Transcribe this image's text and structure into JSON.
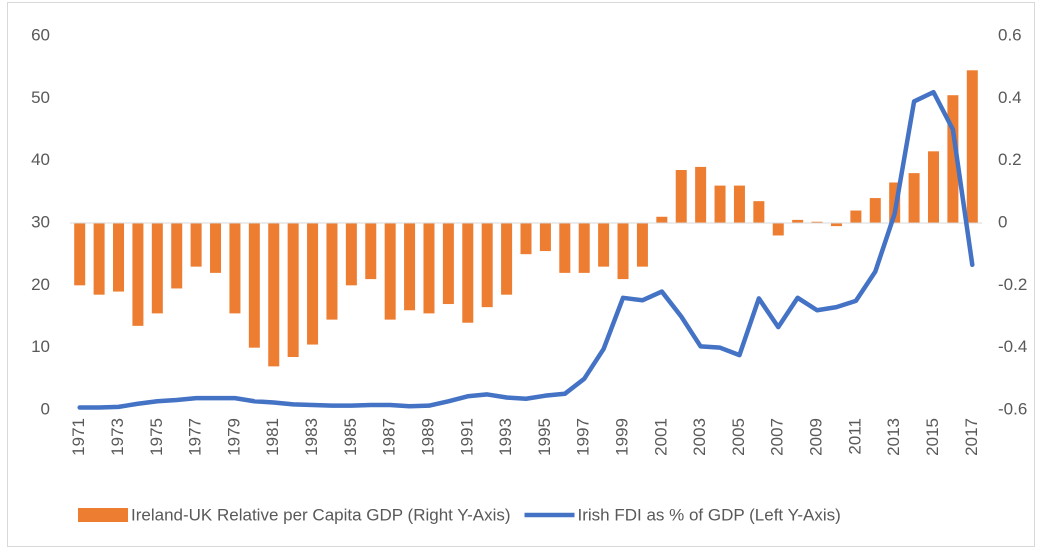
{
  "chart_data": {
    "type": "combo",
    "categories": [
      "1971",
      null,
      "1973",
      null,
      "1975",
      null,
      "1977",
      null,
      "1979",
      null,
      "1981",
      null,
      "1983",
      null,
      "1985",
      null,
      "1987",
      null,
      "1989",
      null,
      "1991",
      null,
      "1993",
      null,
      "1995",
      null,
      "1997",
      null,
      "1999",
      null,
      "2001",
      null,
      "2003",
      null,
      "2005",
      null,
      "2007",
      null,
      "2009",
      null,
      "2011",
      null,
      "2013",
      null,
      "2015",
      null,
      "2017"
    ],
    "ylim": [
      0,
      60
    ],
    "yticks": [
      0,
      10,
      20,
      30,
      40,
      50,
      60
    ],
    "y2lim": [
      -0.6,
      0.6
    ],
    "y2ticks": [
      -0.6,
      -0.4,
      -0.2,
      0,
      0.2,
      0.4,
      0.6
    ],
    "series": [
      {
        "name": "Ireland-UK Relative per Capita GDP (Right Y-Axis)",
        "type": "bar",
        "axis": "y2",
        "color": "#ed7d31",
        "values": [
          -0.2,
          -0.23,
          -0.22,
          -0.33,
          -0.29,
          -0.21,
          -0.14,
          -0.16,
          -0.29,
          -0.4,
          -0.46,
          -0.43,
          -0.39,
          -0.31,
          -0.2,
          -0.18,
          -0.31,
          -0.28,
          -0.29,
          -0.26,
          -0.32,
          -0.27,
          -0.23,
          -0.1,
          -0.09,
          -0.16,
          -0.16,
          -0.14,
          -0.18,
          -0.14,
          0.02,
          0.17,
          0.18,
          0.12,
          0.12,
          0.07,
          -0.04,
          0.01,
          0.004,
          -0.01,
          0.04,
          0.08,
          0.13,
          0.16,
          0.23,
          0.41,
          0.49
        ]
      },
      {
        "name": "Irish FDI as % of GDP (Left Y-Axis)",
        "type": "line",
        "axis": "y",
        "color": "#4472c4",
        "values": [
          0.4,
          0.4,
          0.5,
          1.0,
          1.4,
          1.6,
          1.9,
          1.9,
          1.9,
          1.4,
          1.2,
          0.9,
          0.8,
          0.7,
          0.7,
          0.8,
          0.8,
          0.6,
          0.7,
          1.4,
          2.2,
          2.5,
          2.0,
          1.8,
          2.3,
          2.6,
          5.0,
          9.8,
          18.0,
          17.6,
          19.0,
          15.0,
          10.2,
          10.0,
          8.8,
          17.9,
          13.3,
          18.0,
          16.0,
          16.5,
          17.5,
          22.2,
          31.5,
          49.5,
          51.0,
          45.0,
          23.3
        ]
      }
    ]
  }
}
